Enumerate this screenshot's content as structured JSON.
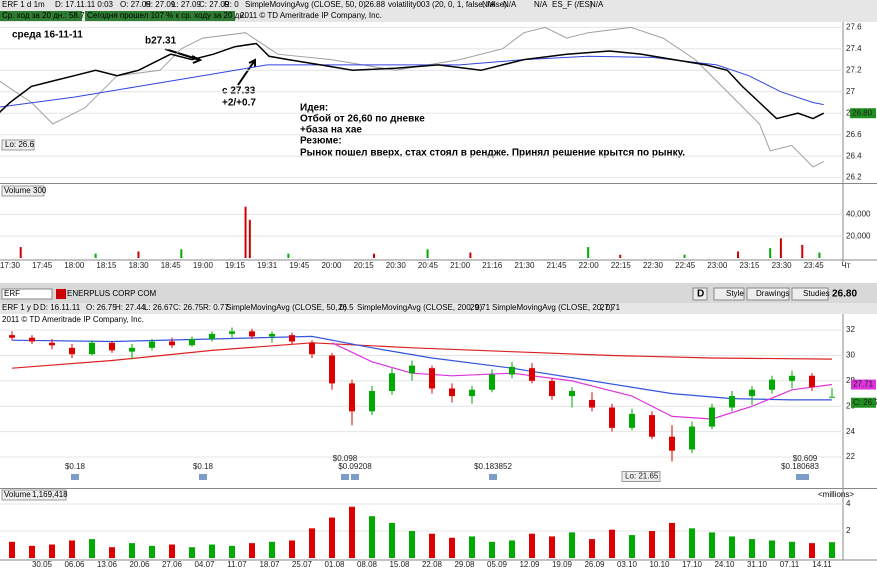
{
  "header": {
    "symbol": "ERF 1 d 1m",
    "date": "D: 17.11.11 0:03",
    "open": "O: 27.09",
    "high": "H: 27.09",
    "low": "L: 27.09",
    "close": "C: 27.09",
    "range": "R: 0",
    "sma": "SimpleMovingAvg (CLOSE, 50, 0)",
    "sma_value": "26.88",
    "vol_study": "volatility003 (20, 0, 1, false, false)",
    "na1": "N/A",
    "na2": "N/A",
    "na3": "N/A",
    "es": "ES_F (/ES)",
    "na4": "N/A",
    "avg_range": "Ср. ход за 20 дн.: 58.72",
    "today": "Сегодня прошел 107 % к ср. ходу за 20 дн.",
    "copyright": "2011 © TD Ameritrade IP Company, Inc."
  },
  "top_chart": {
    "type": "line",
    "ylim": [
      26.15,
      27.65
    ],
    "yticks": [
      27.6,
      27.4,
      27.2,
      {
        "value": 27.0,
        "label": "27"
      },
      26.8,
      26.6,
      26.4,
      26.2
    ],
    "last": "26.80",
    "lo": "Lo: 26.6",
    "price": {
      "color": "#000000",
      "x": [
        "17:22",
        "17:30",
        "17:40",
        "17:50",
        "18:00",
        "18:10",
        "18:20",
        "18:30",
        "18:45",
        "18:55",
        "19:05",
        "19:15",
        "19:25",
        "19:31",
        "19:40",
        "19:55",
        "20:10",
        "20:30",
        "20:50",
        "21:10",
        "21:30",
        "21:50",
        "22:10",
        "22:25",
        "22:40",
        "22:55",
        "23:05",
        "23:12",
        "23:20",
        "23:28",
        "23:38",
        "23:45",
        "23:50"
      ],
      "values": [
        26.75,
        26.9,
        27.05,
        27.1,
        27.15,
        27.2,
        27.15,
        27.2,
        27.35,
        27.3,
        27.35,
        27.42,
        27.45,
        27.33,
        27.3,
        27.25,
        27.2,
        27.22,
        27.25,
        27.2,
        27.3,
        27.35,
        27.38,
        27.35,
        27.3,
        27.25,
        27.2,
        27.05,
        26.9,
        26.75,
        26.8,
        26.75,
        26.8
      ]
    },
    "volatility": {
      "color": "#a0a0a0",
      "x": [
        "17:25",
        "17:40",
        "17:50",
        "18:05",
        "18:20",
        "18:40",
        "18:50",
        "19:00",
        "19:20",
        "19:35",
        "20:00",
        "20:30",
        "21:00",
        "21:20",
        "21:30",
        "21:40",
        "21:50",
        "22:00",
        "22:20",
        "22:35",
        "22:50",
        "23:00",
        "23:10",
        "23:20",
        "23:25",
        "23:35",
        "23:45",
        "23:50"
      ],
      "values": [
        27.1,
        26.9,
        26.7,
        26.85,
        27.15,
        27.2,
        27.4,
        27.5,
        27.55,
        27.35,
        27.3,
        27.2,
        27.3,
        27.4,
        27.55,
        27.6,
        27.5,
        27.55,
        27.6,
        27.5,
        27.3,
        27.1,
        26.9,
        26.7,
        26.45,
        26.5,
        26.3,
        26.35
      ]
    },
    "sma": {
      "color": "#3344dd",
      "x": [
        "17:22",
        "18:00",
        "18:30",
        "19:00",
        "19:30",
        "20:00",
        "20:30",
        "21:00",
        "21:30",
        "22:00",
        "22:30",
        "23:00",
        "23:15",
        "23:30",
        "23:45",
        "23:50"
      ],
      "values": [
        26.85,
        26.95,
        27.05,
        27.15,
        27.25,
        27.25,
        27.25,
        27.25,
        27.3,
        27.33,
        27.32,
        27.25,
        27.15,
        27.0,
        26.9,
        26.88
      ]
    },
    "annotations": [
      "среда 16-11-11",
      "b27.31",
      "с 27.33",
      "+2/+0.7",
      "Идея:",
      "Отбой от 26,60 по дневке",
      "+база на хае",
      "Резюме:",
      "Рынок пошел вверх, стах стоял в рендже. Принял решение крытся по рынку."
    ],
    "volume": {
      "title": "Volume",
      "value": "300",
      "ylim": [
        0,
        55000
      ],
      "yticks": [
        {
          "value": 40000,
          "label": "40,000"
        },
        {
          "value": 20000,
          "label": "20,000"
        }
      ],
      "x": [
        "17:35",
        "18:10",
        "18:30",
        "18:50",
        "19:20",
        "19:22",
        "19:40",
        "20:20",
        "20:45",
        "21:05",
        "22:00",
        "22:15",
        "22:45",
        "23:10",
        "23:25",
        "23:30",
        "23:40",
        "23:48"
      ],
      "values": [
        10000,
        4000,
        6000,
        8000,
        47000,
        35000,
        4000,
        4000,
        8000,
        5000,
        10000,
        3000,
        3000,
        6000,
        9000,
        18000,
        12000,
        5000
      ],
      "colors": [
        "#cc0000",
        "#00aa00",
        "#cc0000",
        "#00aa00",
        "#cc0000",
        "#cc0000",
        "#00aa00",
        "#cc0000",
        "#00aa00",
        "#cc0000",
        "#00aa00",
        "#cc0000",
        "#00aa00",
        "#cc0000",
        "#00aa00",
        "#cc0000",
        "#cc0000",
        "#00aa00"
      ]
    },
    "xticks": [
      "17:30",
      "17:45",
      "18:00",
      "18:15",
      "18:30",
      "18:45",
      "19:00",
      "19:15",
      "19:31",
      "19:45",
      "20:00",
      "20:15",
      "20:30",
      "20:45",
      "21:00",
      "21:16",
      "21:30",
      "21:45",
      "22:00",
      "22:15",
      "22:30",
      "22:45",
      "23:00",
      "23:15",
      "23:30",
      "23:45",
      "Чт"
    ]
  },
  "toolbar": {
    "symbol": "ERF",
    "company": "ENERPLUS CORP COM",
    "period": "D",
    "style": "Style",
    "drawings": "Drawings",
    "studies": "Studies",
    "price": "26.80"
  },
  "bottom_header": {
    "symbol": "ERF 1 y D",
    "date": "D: 16.11.11",
    "open": "O: 26.75",
    "high": "H: 27.44",
    "low": "L: 26.67",
    "close": "C: 26.75",
    "range": "R: 0.77",
    "sma50": "SimpleMovingAvg (CLOSE, 50, 0)",
    "sma50_value": "26.5",
    "sma200": "SimpleMovingAvg (CLOSE, 200, 0)",
    "sma200_value": "29.71",
    "sma20": "SimpleMovingAvg (CLOSE, 20, 0)",
    "sma20_value": "27.71",
    "copyright": "2011 © TD Ameritrade IP Company, Inc."
  },
  "bottom_chart": {
    "type": "candlestick",
    "ylim": [
      19.8,
      32.95
    ],
    "yticks": [
      32,
      30,
      28,
      26,
      24,
      22
    ],
    "up_color": "#00aa00",
    "down_color": "#dd0000",
    "candles": [
      [
        31.6,
        31.9,
        31.2,
        31.4
      ],
      [
        31.4,
        31.6,
        30.9,
        31.1
      ],
      [
        31.0,
        31.3,
        30.5,
        30.8
      ],
      [
        30.6,
        30.9,
        29.8,
        30.1
      ],
      [
        30.1,
        31.2,
        30.0,
        31.0
      ],
      [
        31.0,
        31.1,
        30.2,
        30.4
      ],
      [
        30.3,
        30.9,
        29.7,
        30.6
      ],
      [
        30.6,
        31.3,
        30.4,
        31.1
      ],
      [
        31.1,
        31.4,
        30.6,
        30.8
      ],
      [
        30.8,
        31.5,
        30.7,
        31.3
      ],
      [
        31.3,
        31.9,
        31.1,
        31.7
      ],
      [
        31.7,
        32.2,
        31.4,
        31.9
      ],
      [
        31.9,
        32.1,
        31.3,
        31.5
      ],
      [
        31.5,
        31.9,
        31.0,
        31.7
      ],
      [
        31.6,
        31.8,
        30.9,
        31.1
      ],
      [
        31.0,
        31.2,
        29.8,
        30.1
      ],
      [
        30.0,
        30.2,
        27.3,
        27.8
      ],
      [
        27.8,
        28.1,
        24.5,
        25.6
      ],
      [
        25.6,
        27.6,
        25.3,
        27.2
      ],
      [
        27.2,
        29.0,
        26.9,
        28.6
      ],
      [
        28.6,
        29.6,
        28.0,
        29.2
      ],
      [
        29.0,
        29.2,
        27.0,
        27.4
      ],
      [
        27.4,
        27.8,
        26.3,
        26.8
      ],
      [
        26.8,
        27.6,
        26.2,
        27.3
      ],
      [
        27.3,
        28.9,
        27.1,
        28.5
      ],
      [
        28.5,
        29.5,
        28.2,
        29.1
      ],
      [
        29.0,
        29.4,
        27.8,
        28.0
      ],
      [
        28.0,
        28.2,
        26.5,
        26.8
      ],
      [
        26.8,
        27.5,
        25.9,
        27.2
      ],
      [
        26.5,
        27.1,
        25.6,
        25.9
      ],
      [
        25.9,
        26.2,
        24.0,
        24.3
      ],
      [
        24.3,
        25.8,
        24.1,
        25.4
      ],
      [
        25.3,
        25.6,
        23.4,
        23.6
      ],
      [
        23.6,
        24.5,
        21.65,
        22.5
      ],
      [
        22.6,
        24.8,
        22.3,
        24.4
      ],
      [
        24.4,
        26.2,
        24.2,
        25.9
      ],
      [
        25.9,
        27.2,
        25.6,
        26.8
      ],
      [
        26.8,
        27.6,
        26.1,
        27.3
      ],
      [
        27.3,
        28.4,
        27.0,
        28.1
      ],
      [
        28.0,
        28.8,
        27.4,
        28.4
      ],
      [
        28.4,
        28.6,
        27.2,
        27.5
      ],
      [
        26.75,
        27.44,
        26.67,
        26.75
      ]
    ],
    "lines": [
      {
        "color": "#dd2222",
        "x": [
          0,
          5,
          10,
          15,
          20,
          25,
          30,
          35,
          41
        ],
        "values": [
          29.0,
          29.6,
          30.4,
          31.0,
          30.6,
          30.3,
          30.0,
          29.8,
          29.71
        ]
      },
      {
        "color": "#3355dd",
        "x": [
          0,
          5,
          10,
          15,
          18,
          21,
          25,
          29,
          33,
          36,
          39,
          41
        ],
        "values": [
          31.2,
          31.1,
          31.3,
          31.5,
          30.6,
          29.8,
          29.0,
          28.0,
          27.0,
          26.6,
          26.5,
          26.5
        ]
      },
      {
        "color": "#dd33dd",
        "x": [
          16,
          18,
          20,
          22,
          25,
          28,
          31,
          33,
          35,
          37,
          39,
          41
        ],
        "values": [
          31.0,
          29.5,
          28.6,
          28.4,
          28.6,
          28.0,
          26.8,
          25.2,
          25.0,
          26.0,
          27.3,
          27.71
        ]
      }
    ],
    "lo": "Lo: 21.65",
    "dividends": [
      "$0.18",
      "$0.18",
      "$0.098",
      "$0.09208",
      "$0.183852",
      "$0.609",
      "$0.180683"
    ],
    "volume": {
      "title": "Volume",
      "value": "1,169,418",
      "units": "<millions>",
      "ylim": [
        0,
        4.3
      ],
      "yticks": [
        4,
        2
      ],
      "values": [
        1.2,
        0.9,
        1.0,
        1.3,
        1.4,
        0.8,
        1.1,
        0.9,
        1.0,
        0.8,
        1.0,
        0.9,
        1.1,
        1.2,
        1.3,
        2.2,
        3.0,
        3.8,
        3.1,
        2.6,
        2.0,
        1.8,
        1.5,
        1.6,
        1.2,
        1.3,
        1.8,
        1.6,
        1.9,
        1.4,
        2.1,
        1.7,
        2.0,
        2.6,
        2.2,
        1.9,
        1.6,
        1.4,
        1.3,
        1.2,
        1.1,
        1.17
      ]
    },
    "xticks": [
      "30.05",
      "06.06",
      "13.06",
      "20.06",
      "27.06",
      "04.07",
      "11.07",
      "18.07",
      "25.07",
      "01.08",
      "08.08",
      "15.08",
      "22.08",
      "29.08",
      "05.09",
      "12.09",
      "19.09",
      "26.09",
      "03.10",
      "10.10",
      "17.10",
      "24.10",
      "31.10",
      "07.11",
      "14.11"
    ]
  }
}
